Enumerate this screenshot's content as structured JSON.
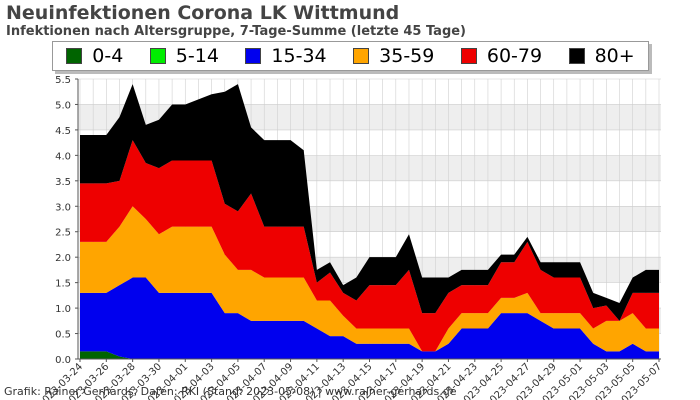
{
  "title": "Neuinfektionen Corona LK Wittmund",
  "subtitle": "Infektionen nach Altersgruppe, 7-Tage-Summe (letzte 45 Tage)",
  "credit": "Grafik: Rainer Gerhards, Daten: RKI (Stand: 2023-05-08) | www.rainer-gerhards.de",
  "chart_data": {
    "type": "area",
    "stacked": true,
    "title": "Neuinfektionen Corona LK Wittmund",
    "subtitle": "Infektionen nach Altersgruppe, 7-Tage-Summe (letzte 45 Tage)",
    "xlabel": "",
    "ylabel": "",
    "ylim": [
      0,
      5.5
    ],
    "yticks": [
      "0.0",
      "0.5",
      "1.0",
      "1.5",
      "2.0",
      "2.5",
      "3.0",
      "3.5",
      "4.0",
      "4.5",
      "5.0",
      "5.5"
    ],
    "grid": true,
    "legend_position": "top",
    "x_tick_labels": [
      "2023-03-24",
      "2023-03-26",
      "2023-03-28",
      "2023-03-30",
      "2023-04-01",
      "2023-04-03",
      "2023-04-05",
      "2023-04-07",
      "2023-04-09",
      "2023-04-11",
      "2023-04-13",
      "2023-04-15",
      "2023-04-17",
      "2023-04-19",
      "2023-04-21",
      "2023-04-23",
      "2023-04-25",
      "2023-04-27",
      "2023-04-29",
      "2023-05-01",
      "2023-05-03",
      "2023-05-05",
      "2023-05-07"
    ],
    "x": [
      "2023-03-24",
      "2023-03-25",
      "2023-03-26",
      "2023-03-27",
      "2023-03-28",
      "2023-03-29",
      "2023-03-30",
      "2023-03-31",
      "2023-04-01",
      "2023-04-02",
      "2023-04-03",
      "2023-04-04",
      "2023-04-05",
      "2023-04-06",
      "2023-04-07",
      "2023-04-08",
      "2023-04-09",
      "2023-04-10",
      "2023-04-11",
      "2023-04-12",
      "2023-04-13",
      "2023-04-14",
      "2023-04-15",
      "2023-04-16",
      "2023-04-17",
      "2023-04-18",
      "2023-04-19",
      "2023-04-20",
      "2023-04-21",
      "2023-04-22",
      "2023-04-23",
      "2023-04-24",
      "2023-04-25",
      "2023-04-26",
      "2023-04-27",
      "2023-04-28",
      "2023-04-29",
      "2023-04-30",
      "2023-05-01",
      "2023-05-02",
      "2023-05-03",
      "2023-05-04",
      "2023-05-05",
      "2023-05-06",
      "2023-05-07"
    ],
    "series": [
      {
        "name": "0-4",
        "color": "#006400",
        "values": [
          0.15,
          0.15,
          0.15,
          0.05,
          0,
          0,
          0,
          0,
          0,
          0,
          0,
          0,
          0,
          0,
          0,
          0,
          0,
          0,
          0,
          0,
          0,
          0,
          0,
          0,
          0,
          0,
          0,
          0,
          0,
          0,
          0,
          0,
          0,
          0,
          0,
          0,
          0,
          0,
          0,
          0,
          0,
          0,
          0,
          0,
          0
        ]
      },
      {
        "name": "5-14",
        "color": "#00ee00",
        "values": [
          0,
          0,
          0,
          0,
          0,
          0,
          0,
          0,
          0,
          0,
          0,
          0,
          0,
          0,
          0,
          0,
          0,
          0,
          0,
          0,
          0,
          0,
          0,
          0,
          0,
          0,
          0,
          0,
          0,
          0,
          0,
          0,
          0,
          0,
          0,
          0,
          0,
          0,
          0,
          0,
          0,
          0,
          0,
          0,
          0
        ]
      },
      {
        "name": "15-34",
        "color": "#0000ee",
        "values": [
          1.15,
          1.15,
          1.15,
          1.4,
          1.6,
          1.6,
          1.3,
          1.3,
          1.3,
          1.3,
          1.3,
          0.9,
          0.9,
          0.75,
          0.75,
          0.75,
          0.75,
          0.75,
          0.6,
          0.45,
          0.45,
          0.3,
          0.3,
          0.3,
          0.3,
          0.3,
          0.15,
          0.15,
          0.3,
          0.6,
          0.6,
          0.6,
          0.9,
          0.9,
          0.9,
          0.75,
          0.6,
          0.6,
          0.6,
          0.3,
          0.15,
          0.15,
          0.3,
          0.15,
          0.15
        ]
      },
      {
        "name": "35-59",
        "color": "#ffa500",
        "values": [
          1.0,
          1.0,
          1.0,
          1.15,
          1.4,
          1.15,
          1.15,
          1.3,
          1.3,
          1.3,
          1.3,
          1.15,
          0.85,
          1.0,
          0.85,
          0.85,
          0.85,
          0.85,
          0.55,
          0.7,
          0.4,
          0.3,
          0.3,
          0.3,
          0.3,
          0.3,
          0,
          0,
          0.3,
          0.3,
          0.3,
          0.3,
          0.3,
          0.3,
          0.4,
          0.15,
          0.3,
          0.3,
          0.3,
          0.3,
          0.6,
          0.6,
          0.6,
          0.45,
          0.45
        ]
      },
      {
        "name": "60-79",
        "color": "#ee0000",
        "values": [
          1.15,
          1.15,
          1.15,
          0.9,
          1.3,
          1.1,
          1.3,
          1.3,
          1.3,
          1.3,
          1.3,
          1.0,
          1.15,
          1.5,
          1.0,
          1.0,
          1.0,
          1.0,
          0.35,
          0.55,
          0.45,
          0.55,
          0.85,
          0.85,
          0.85,
          1.15,
          0.75,
          0.75,
          0.7,
          0.55,
          0.55,
          0.55,
          0.7,
          0.7,
          1.0,
          0.85,
          0.7,
          0.7,
          0.7,
          0.4,
          0.3,
          0,
          0.4,
          0.7,
          0.7
        ]
      },
      {
        "name": "80+",
        "color": "#000000",
        "values": [
          0.95,
          0.95,
          0.95,
          1.25,
          1.1,
          0.75,
          0.95,
          1.1,
          1.1,
          1.2,
          1.3,
          2.2,
          2.5,
          1.3,
          1.7,
          1.7,
          1.7,
          1.5,
          0.25,
          0.2,
          0.15,
          0.45,
          0.55,
          0.55,
          0.55,
          0.7,
          0.7,
          0.7,
          0.3,
          0.3,
          0.3,
          0.3,
          0.15,
          0.15,
          0.1,
          0.15,
          0.3,
          0.3,
          0.3,
          0.3,
          0.15,
          0.35,
          0.3,
          0.45,
          0.45
        ]
      }
    ]
  }
}
